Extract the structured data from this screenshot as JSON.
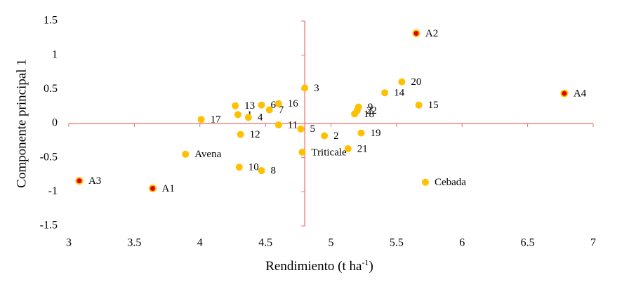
{
  "chart_data": {
    "type": "scatter",
    "xlabel": [
      "Rendimiento (t ha",
      "-1",
      ")"
    ],
    "ylabel": "Componente principal 1",
    "xlim": [
      3,
      7
    ],
    "ylim": [
      -1.5,
      1.5
    ],
    "xticks": [
      3,
      3.5,
      4,
      4.5,
      5,
      5.5,
      6,
      6.5,
      7
    ],
    "yticks": [
      -1.5,
      -1,
      -0.5,
      0,
      0.5,
      1,
      1.5
    ],
    "y_axis_at": 4.8,
    "axis_color": "#e8706a",
    "series": [
      {
        "color": "#ffc000",
        "labels": [
          "1",
          "2",
          "3",
          "4",
          "5",
          "6",
          "7",
          "8",
          "9",
          "10",
          "11",
          "12",
          "13",
          "14",
          "15",
          "16",
          "17",
          "18",
          "19",
          "20",
          "21",
          "22",
          "Avena",
          "Triticale",
          "Cebada"
        ],
        "x": [
          4.29,
          4.95,
          4.8,
          4.37,
          4.77,
          4.47,
          4.53,
          4.47,
          5.21,
          4.3,
          4.6,
          4.31,
          4.27,
          5.41,
          5.67,
          4.6,
          4.01,
          5.18,
          5.23,
          5.54,
          5.13,
          5.2,
          3.89,
          4.78,
          5.72
        ],
        "values": [
          0.13,
          -0.18,
          0.52,
          0.09,
          -0.08,
          0.27,
          0.2,
          -0.69,
          0.24,
          -0.64,
          -0.02,
          -0.16,
          0.26,
          0.45,
          0.27,
          0.29,
          0.06,
          0.14,
          -0.14,
          0.61,
          -0.37,
          0.19,
          -0.45,
          -0.42,
          -0.86
        ]
      },
      {
        "color": "#ffc000",
        "center_color": "#e00000",
        "labels": [
          "A1",
          "A2",
          "A3",
          "A4"
        ],
        "x": [
          3.64,
          5.65,
          3.08,
          6.78
        ],
        "values": [
          -0.95,
          1.32,
          -0.84,
          0.44
        ]
      }
    ]
  }
}
